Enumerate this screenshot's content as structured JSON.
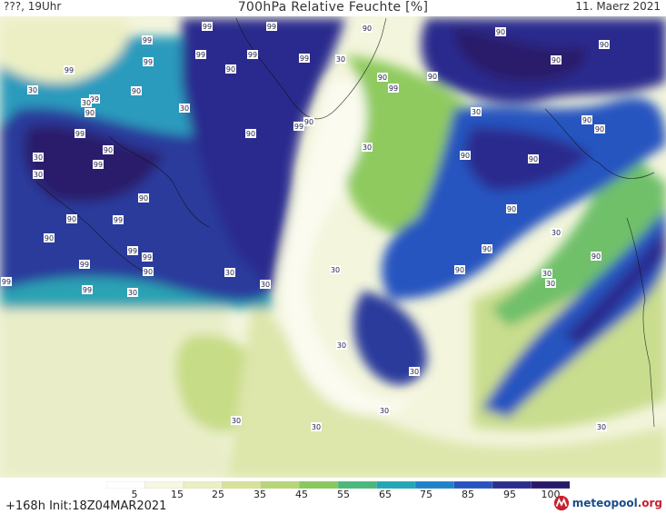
{
  "header": {
    "left": "???, 19Uhr",
    "title": "700hPa Relative Feuchte [%]",
    "date": "11. Maerz 2021"
  },
  "legend": {
    "ticks": [
      "5",
      "15",
      "25",
      "35",
      "45",
      "55",
      "65",
      "75",
      "85",
      "95",
      "100"
    ],
    "colors": [
      "#ffffff",
      "#f7f7e2",
      "#ecefc4",
      "#d8e29a",
      "#b9d57a",
      "#89c95c",
      "#4ab87a",
      "#22a7b5",
      "#1f82c9",
      "#2554c0",
      "#2a2c8e",
      "#2a1a6b"
    ]
  },
  "footer": {
    "init": "+168h  Init:18Z04MAR2021"
  },
  "brand": {
    "name": "meteopool",
    "suffix": ".org"
  },
  "map_labels": [
    "99",
    "99",
    "99",
    "99",
    "99",
    "99",
    "99",
    "99",
    "99",
    "99",
    "99",
    "99",
    "99",
    "99",
    "99",
    "99",
    "99",
    "99",
    "99",
    "90",
    "90",
    "90",
    "90",
    "90",
    "90",
    "90",
    "90",
    "90",
    "90",
    "90",
    "90",
    "90",
    "90",
    "90",
    "90",
    "90",
    "90",
    "90",
    "90",
    "90",
    "90",
    "90",
    "90",
    "30",
    "30",
    "30",
    "30",
    "30",
    "30",
    "30",
    "30",
    "30",
    "30",
    "30",
    "30",
    "30",
    "30",
    "30",
    "30",
    "30",
    "30",
    "30",
    "30",
    "30"
  ]
}
